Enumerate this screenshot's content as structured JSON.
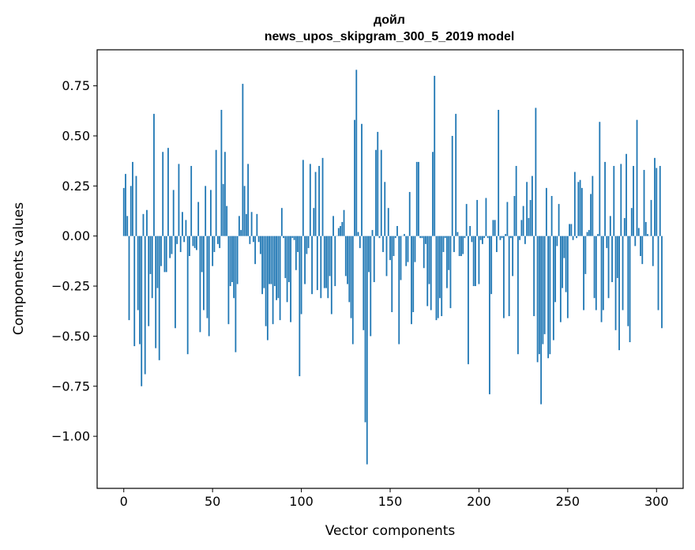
{
  "chart_data": {
    "type": "bar",
    "title_lines": [
      "дойл",
      "news_upos_skipgram_300_5_2019 model"
    ],
    "xlabel": "Vector components",
    "ylabel": "Components values",
    "xlim": [
      -15,
      315
    ],
    "ylim": [
      -1.26,
      0.93
    ],
    "xticks": [
      0,
      50,
      100,
      150,
      200,
      250,
      300
    ],
    "xtick_labels": [
      "0",
      "50",
      "100",
      "150",
      "200",
      "250",
      "300"
    ],
    "yticks": [
      -1.0,
      -0.75,
      -0.5,
      -0.25,
      0.0,
      0.25,
      0.5,
      0.75
    ],
    "ytick_labels": [
      "−1.00",
      "−0.75",
      "−0.50",
      "−0.25",
      "0.00",
      "0.25",
      "0.50",
      "0.75"
    ],
    "bar_color": "#1f77b4",
    "grid": false,
    "values": [
      0.24,
      0.31,
      0.1,
      -0.42,
      0.25,
      0.37,
      -0.55,
      0.3,
      -0.37,
      -0.54,
      -0.75,
      0.11,
      -0.69,
      0.13,
      -0.45,
      -0.19,
      -0.31,
      0.61,
      -0.56,
      -0.26,
      -0.62,
      -0.15,
      0.42,
      -0.18,
      -0.18,
      0.44,
      -0.11,
      -0.09,
      0.23,
      -0.46,
      -0.04,
      0.36,
      -0.08,
      0.12,
      -0.03,
      0.08,
      -0.59,
      -0.1,
      0.35,
      -0.05,
      -0.06,
      -0.07,
      0.17,
      -0.48,
      -0.18,
      -0.37,
      0.25,
      -0.41,
      -0.5,
      0.23,
      -0.15,
      -0.08,
      0.43,
      -0.04,
      -0.06,
      0.63,
      0.26,
      0.42,
      0.15,
      -0.44,
      -0.25,
      -0.23,
      -0.31,
      -0.58,
      -0.24,
      0.1,
      0.03,
      0.76,
      0.25,
      0.11,
      0.36,
      -0.04,
      0.12,
      -0.03,
      -0.14,
      0.11,
      -0.03,
      -0.09,
      -0.29,
      -0.26,
      -0.45,
      -0.52,
      -0.24,
      -0.24,
      -0.44,
      -0.25,
      -0.32,
      -0.31,
      -0.42,
      0.14,
      -0.01,
      -0.21,
      -0.33,
      -0.23,
      -0.43,
      -0.01,
      -0.02,
      -0.17,
      -0.08,
      -0.7,
      -0.39,
      0.38,
      -0.24,
      -0.09,
      -0.06,
      0.36,
      -0.29,
      0.14,
      0.32,
      -0.27,
      0.35,
      -0.31,
      0.39,
      -0.26,
      -0.26,
      -0.31,
      -0.2,
      -0.39,
      0.1,
      -0.25,
      0.0,
      0.04,
      0.05,
      0.07,
      0.13,
      -0.2,
      -0.24,
      -0.33,
      -0.41,
      -0.54,
      0.58,
      0.83,
      0.02,
      -0.06,
      0.56,
      -0.47,
      -0.93,
      -1.14,
      -0.18,
      -0.5,
      0.03,
      -0.23,
      0.43,
      0.52,
      -0.01,
      0.43,
      -0.08,
      0.27,
      -0.2,
      0.14,
      -0.12,
      -0.38,
      -0.1,
      -0.01,
      0.05,
      -0.54,
      -0.22,
      0.0,
      0.01,
      -0.15,
      -0.13,
      0.22,
      -0.44,
      -0.38,
      -0.13,
      0.37,
      0.37,
      -0.01,
      -0.01,
      -0.16,
      -0.04,
      -0.35,
      -0.24,
      -0.37,
      0.42,
      0.8,
      -0.42,
      -0.41,
      -0.31,
      -0.4,
      -0.08,
      -0.01,
      -0.26,
      -0.17,
      -0.36,
      0.5,
      -0.08,
      0.61,
      0.02,
      -0.1,
      -0.1,
      -0.09,
      -0.01,
      0.16,
      -0.64,
      0.05,
      -0.03,
      -0.25,
      -0.25,
      0.18,
      -0.24,
      -0.02,
      -0.04,
      -0.01,
      0.19,
      -0.01,
      -0.79,
      -0.29,
      0.08,
      0.08,
      -0.08,
      0.63,
      -0.02,
      -0.01,
      -0.41,
      0.01,
      0.17,
      -0.4,
      -0.01,
      -0.2,
      0.2,
      0.35,
      -0.59,
      -0.02,
      0.08,
      0.15,
      -0.04,
      0.27,
      0.09,
      0.18,
      0.3,
      -0.4,
      0.64,
      -0.63,
      -0.59,
      -0.84,
      -0.54,
      -0.49,
      0.24,
      -0.61,
      -0.59,
      0.2,
      -0.52,
      -0.33,
      -0.05,
      0.16,
      -0.43,
      -0.26,
      -0.11,
      -0.28,
      -0.41,
      0.06,
      0.06,
      -0.02,
      0.32,
      -0.01,
      0.27,
      0.28,
      0.24,
      -0.37,
      -0.19,
      0.02,
      0.03,
      0.21,
      0.3,
      -0.31,
      -0.37,
      0.01,
      0.57,
      -0.43,
      -0.37,
      0.37,
      -0.06,
      -0.31,
      0.1,
      -0.23,
      0.35,
      -0.47,
      -0.21,
      -0.57,
      0.36,
      -0.37,
      0.09,
      0.41,
      -0.45,
      -0.53,
      0.14,
      0.35,
      -0.05,
      0.58,
      0.04,
      -0.1,
      -0.14,
      0.33,
      0.07,
      0.01,
      0.0,
      0.18,
      -0.15,
      0.39,
      0.34,
      -0.37,
      0.35,
      -0.46
    ]
  }
}
